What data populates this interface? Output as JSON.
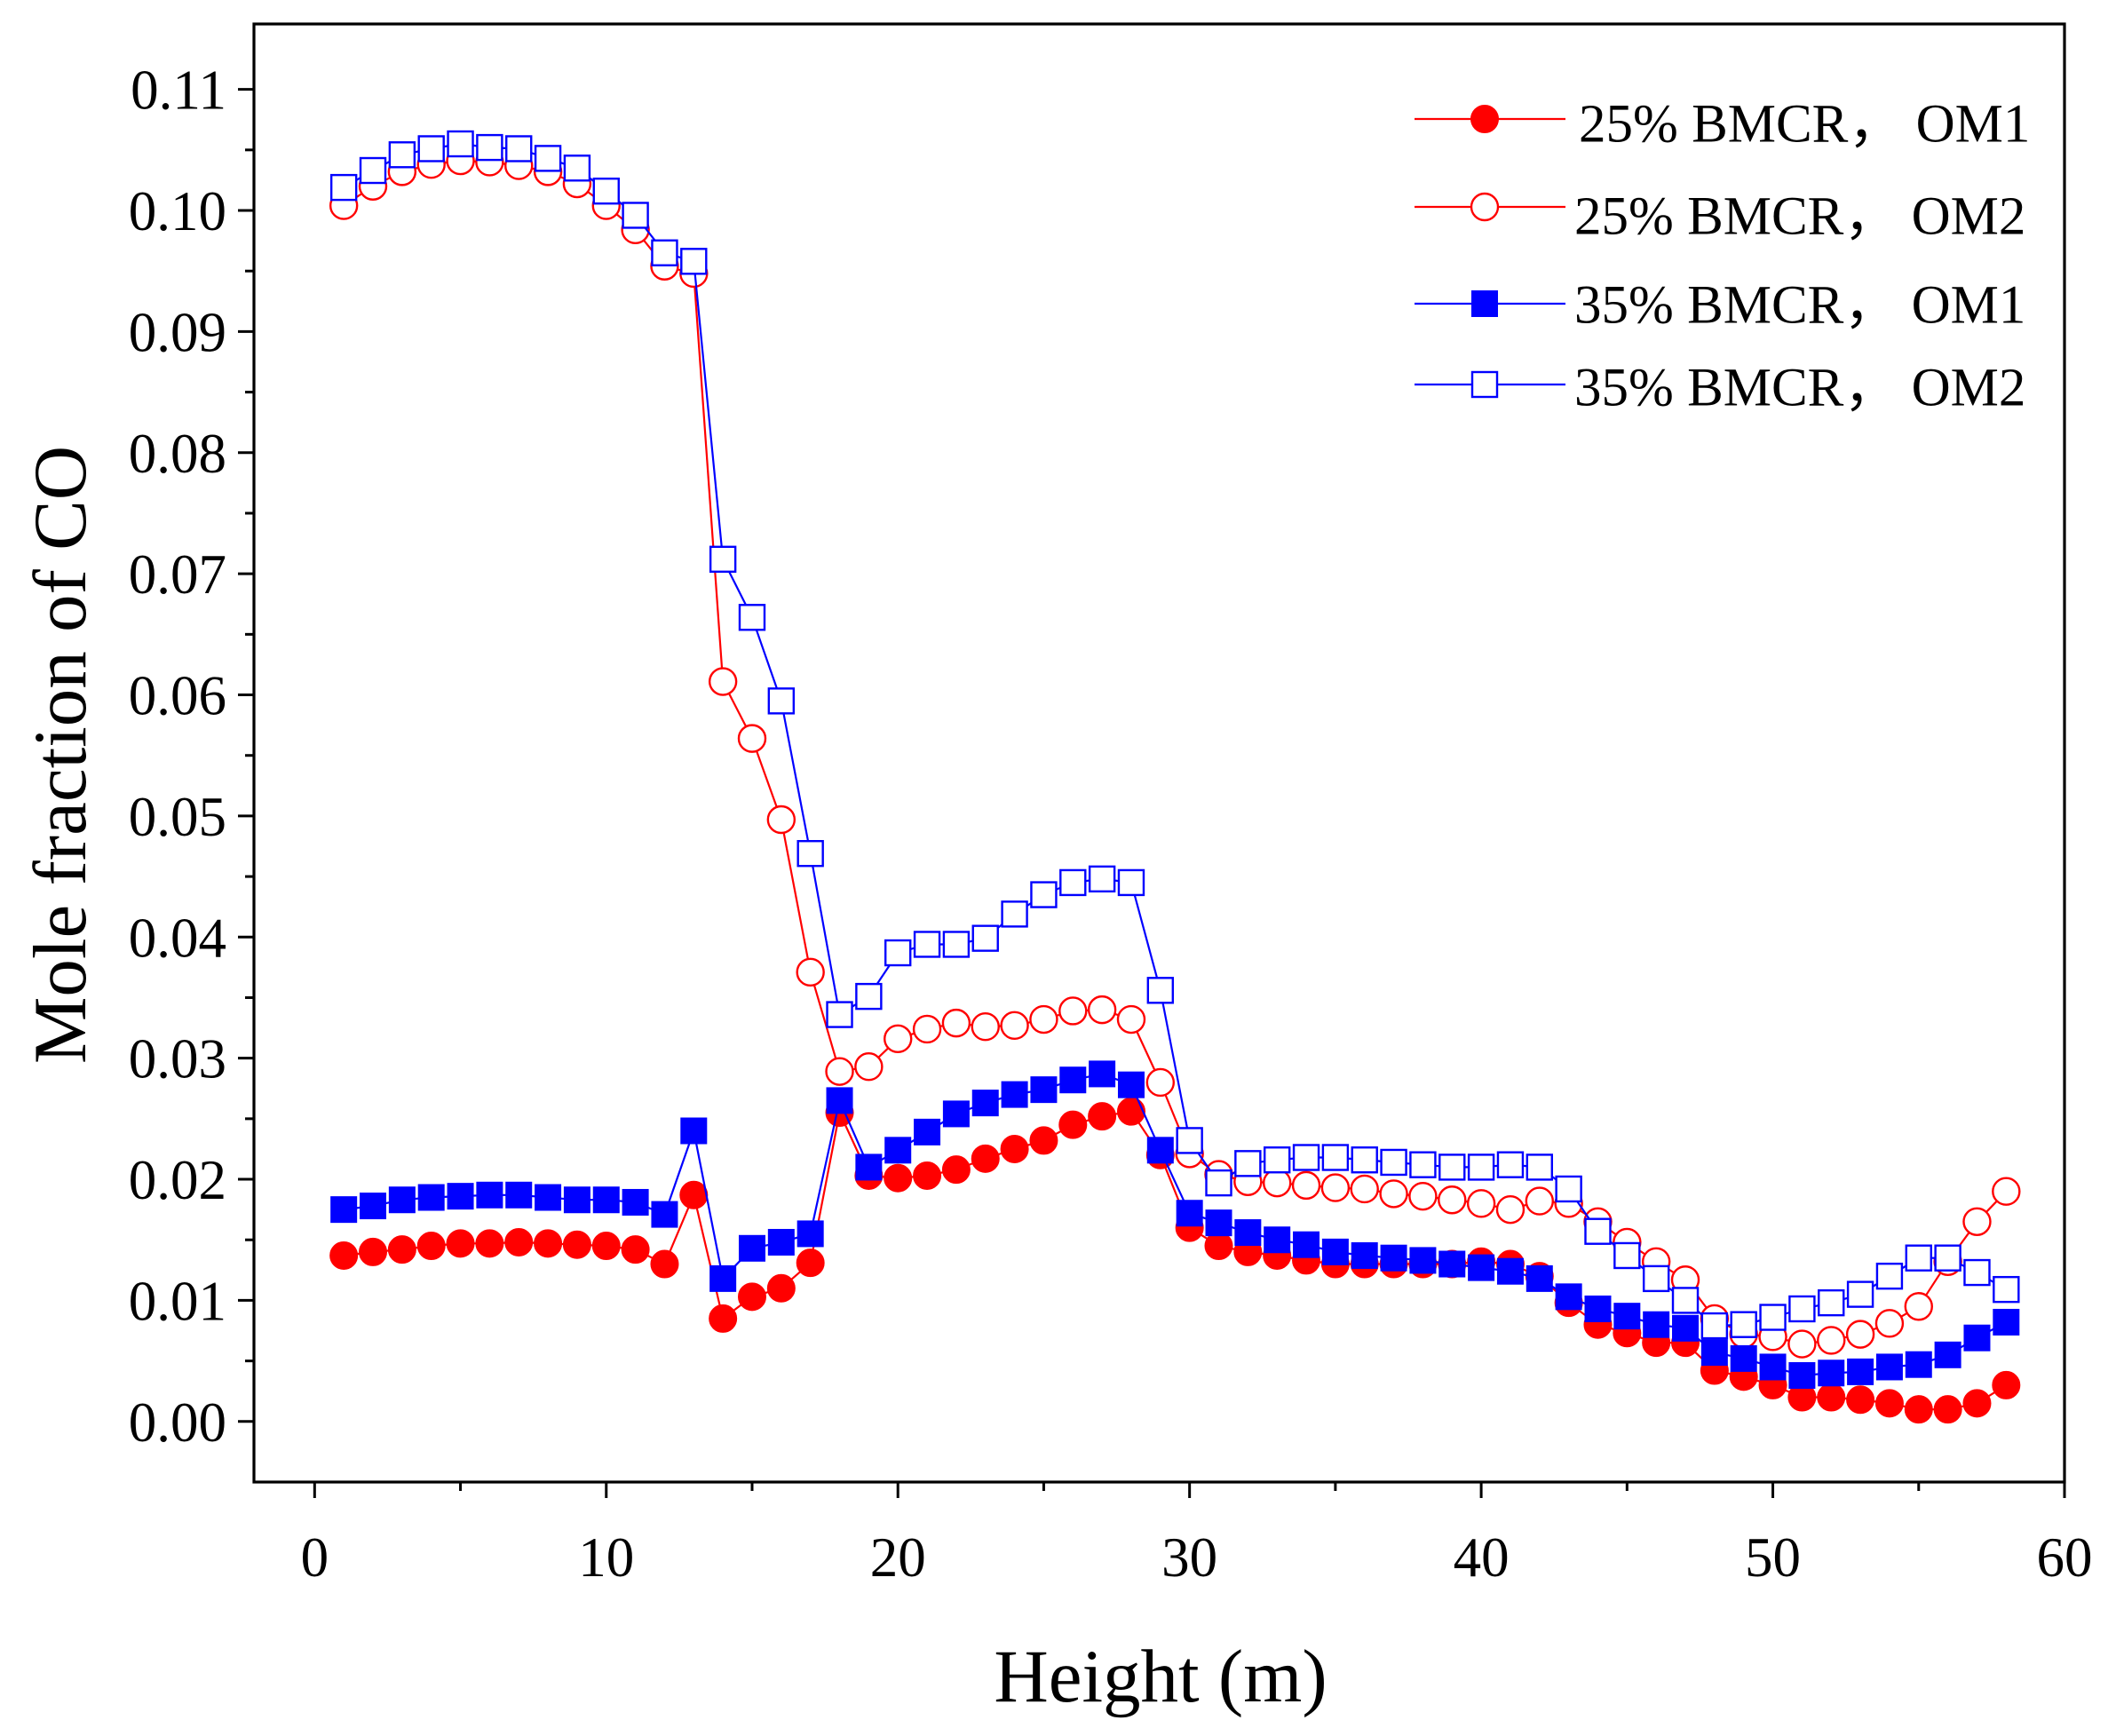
{
  "chart_data": {
    "type": "line",
    "title": "",
    "xlabel": "Height (m)",
    "ylabel": "Mole fraction of CO",
    "xlim": [
      -2.08,
      60
    ],
    "ylim": [
      -0.005,
      0.1154
    ],
    "xticks": [
      "0",
      "10",
      "20",
      "30",
      "40",
      "50",
      "60"
    ],
    "yticks": [
      "0.00",
      "0.01",
      "0.02",
      "0.03",
      "0.04",
      "0.05",
      "0.06",
      "0.07",
      "0.08",
      "0.09",
      "0.10",
      "0.11"
    ],
    "grid": false,
    "legend_position": "top-right",
    "x": [
      1,
      2,
      3,
      4,
      5,
      6,
      7,
      8,
      9,
      10,
      11,
      12,
      13,
      14,
      15,
      16,
      17,
      18,
      19,
      20,
      21,
      22,
      23,
      24,
      25,
      26,
      27,
      28,
      29,
      30,
      31,
      32,
      33,
      34,
      35,
      36,
      37,
      38,
      39,
      40,
      41,
      42,
      43,
      44,
      45,
      46,
      47,
      48,
      49,
      50,
      51,
      52,
      53,
      54,
      55,
      56,
      57,
      58
    ],
    "series": [
      {
        "name": "25% BMCR， OM1",
        "color": "#ff0000",
        "marker": "filled-circle",
        "values": [
          0.0137,
          0.014,
          0.0142,
          0.0145,
          0.0147,
          0.0147,
          0.0148,
          0.0147,
          0.0146,
          0.0145,
          0.0142,
          0.013,
          0.0187,
          0.0085,
          0.0103,
          0.011,
          0.0131,
          0.0255,
          0.0203,
          0.0201,
          0.0203,
          0.0208,
          0.0217,
          0.0225,
          0.0232,
          0.0245,
          0.0252,
          0.0256,
          0.022,
          0.016,
          0.0145,
          0.014,
          0.0137,
          0.0133,
          0.013,
          0.013,
          0.013,
          0.013,
          0.013,
          0.0132,
          0.013,
          0.012,
          0.0098,
          0.008,
          0.0073,
          0.0065,
          0.0065,
          0.0042,
          0.0037,
          0.003,
          0.002,
          0.002,
          0.0018,
          0.0015,
          0.001,
          0.001,
          0.0015,
          0.003
        ]
      },
      {
        "name": "25% BMCR， OM2",
        "color": "#ff0000",
        "marker": "open-circle",
        "values": [
          0.1004,
          0.102,
          0.1032,
          0.1038,
          0.1041,
          0.104,
          0.1037,
          0.1032,
          0.1022,
          0.1004,
          0.0984,
          0.0954,
          0.0948,
          0.0611,
          0.0564,
          0.0497,
          0.0371,
          0.0289,
          0.0293,
          0.0316,
          0.0324,
          0.0329,
          0.0326,
          0.0327,
          0.0332,
          0.0339,
          0.034,
          0.0332,
          0.028,
          0.0221,
          0.0204,
          0.0198,
          0.0197,
          0.0195,
          0.0193,
          0.0192,
          0.0188,
          0.0186,
          0.0183,
          0.018,
          0.0175,
          0.0182,
          0.018,
          0.0165,
          0.0148,
          0.0132,
          0.0117,
          0.0085,
          0.0072,
          0.007,
          0.0064,
          0.0067,
          0.0072,
          0.0081,
          0.0095,
          0.0132,
          0.0165,
          0.019
        ]
      },
      {
        "name": "35% BMCR， OM1",
        "color": "#0000ff",
        "marker": "filled-square",
        "values": [
          0.0175,
          0.0178,
          0.0183,
          0.0185,
          0.0186,
          0.0187,
          0.0187,
          0.0185,
          0.0183,
          0.0183,
          0.0181,
          0.0171,
          0.024,
          0.0118,
          0.0143,
          0.0148,
          0.0155,
          0.0265,
          0.021,
          0.0224,
          0.0239,
          0.0254,
          0.0263,
          0.027,
          0.0274,
          0.0282,
          0.0287,
          0.0278,
          0.0224,
          0.0172,
          0.0164,
          0.0156,
          0.015,
          0.0146,
          0.014,
          0.0137,
          0.0135,
          0.0133,
          0.013,
          0.0127,
          0.0124,
          0.0118,
          0.0103,
          0.0093,
          0.0087,
          0.008,
          0.0077,
          0.0057,
          0.0052,
          0.0045,
          0.0038,
          0.004,
          0.0041,
          0.0045,
          0.0047,
          0.0055,
          0.0069,
          0.0082
        ]
      },
      {
        "name": "35% BMCR， OM2",
        "color": "#0000ff",
        "marker": "open-square",
        "values": [
          0.1019,
          0.1033,
          0.1046,
          0.1051,
          0.1055,
          0.1052,
          0.1051,
          0.1043,
          0.1035,
          0.1016,
          0.0996,
          0.0965,
          0.0958,
          0.0712,
          0.0664,
          0.0595,
          0.0469,
          0.0336,
          0.0351,
          0.0387,
          0.0394,
          0.0394,
          0.0399,
          0.0419,
          0.0435,
          0.0445,
          0.0448,
          0.0445,
          0.0356,
          0.0232,
          0.0197,
          0.0213,
          0.0216,
          0.0218,
          0.0218,
          0.0216,
          0.0214,
          0.0212,
          0.021,
          0.021,
          0.0212,
          0.021,
          0.0192,
          0.0157,
          0.0137,
          0.0118,
          0.01,
          0.0079,
          0.008,
          0.0086,
          0.0093,
          0.0098,
          0.0105,
          0.012,
          0.0135,
          0.0135,
          0.0123,
          0.0109
        ]
      }
    ]
  }
}
